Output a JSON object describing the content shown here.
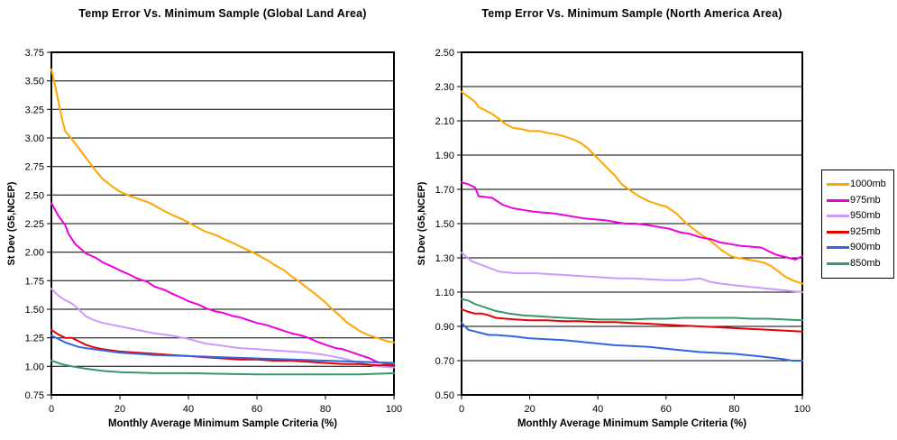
{
  "page": {
    "background": "#ffffff"
  },
  "legend": {
    "position": "right",
    "entries": [
      {
        "label": "1000mb",
        "color": "#FFA500"
      },
      {
        "label": "975mb",
        "color": "#EE00DD"
      },
      {
        "label": "950mb",
        "color": "#CC99FF"
      },
      {
        "label": "925mb",
        "color": "#E60000"
      },
      {
        "label": "900mb",
        "color": "#3366DD"
      },
      {
        "label": "850mb",
        "color": "#339966"
      }
    ]
  },
  "chart_data": [
    {
      "type": "line",
      "title": "Temp Error Vs. Minimum Sample (Global Land Area)",
      "xlabel": "Monthly Average Minimum Sample Criteria (%)",
      "ylabel": "St Dev (G5,NCEP)",
      "xlim": [
        0,
        100
      ],
      "xticks": [
        0,
        20,
        40,
        60,
        80,
        100
      ],
      "ylim": [
        0.75,
        3.75
      ],
      "ytick_step": 0.25,
      "grid": true,
      "series": [
        {
          "name": "1000mb",
          "color": "#FFA500",
          "x": [
            0,
            1,
            3,
            4,
            6,
            8,
            10,
            13,
            15,
            18,
            20,
            23,
            25,
            28,
            30,
            33,
            35,
            38,
            40,
            43,
            45,
            48,
            50,
            53,
            55,
            58,
            60,
            63,
            65,
            68,
            70,
            72,
            75,
            78,
            80,
            82,
            84,
            86,
            88,
            90,
            92,
            94,
            96,
            98,
            100
          ],
          "y": [
            3.6,
            3.47,
            3.18,
            3.06,
            2.99,
            2.91,
            2.83,
            2.71,
            2.64,
            2.57,
            2.53,
            2.49,
            2.47,
            2.44,
            2.41,
            2.36,
            2.33,
            2.29,
            2.26,
            2.21,
            2.18,
            2.15,
            2.12,
            2.08,
            2.05,
            2.01,
            1.98,
            1.93,
            1.89,
            1.84,
            1.79,
            1.75,
            1.68,
            1.61,
            1.56,
            1.5,
            1.45,
            1.39,
            1.35,
            1.31,
            1.28,
            1.26,
            1.24,
            1.22,
            1.21
          ]
        },
        {
          "name": "975mb",
          "color": "#EE00DD",
          "x": [
            0,
            2,
            4,
            5,
            7,
            10,
            13,
            15,
            18,
            20,
            23,
            25,
            28,
            30,
            33,
            35,
            38,
            40,
            43,
            45,
            48,
            50,
            53,
            55,
            58,
            60,
            63,
            65,
            68,
            70,
            73,
            75,
            78,
            80,
            83,
            85,
            88,
            90,
            93,
            95,
            98,
            100
          ],
          "y": [
            2.43,
            2.32,
            2.24,
            2.16,
            2.07,
            1.99,
            1.95,
            1.91,
            1.87,
            1.84,
            1.8,
            1.77,
            1.74,
            1.7,
            1.67,
            1.64,
            1.6,
            1.57,
            1.54,
            1.51,
            1.48,
            1.47,
            1.44,
            1.43,
            1.4,
            1.38,
            1.36,
            1.34,
            1.31,
            1.29,
            1.27,
            1.25,
            1.21,
            1.19,
            1.16,
            1.15,
            1.12,
            1.1,
            1.07,
            1.04,
            1.02,
            1.02
          ]
        },
        {
          "name": "950mb",
          "color": "#CC99FF",
          "x": [
            0,
            2,
            4,
            6,
            8,
            10,
            12,
            15,
            20,
            25,
            30,
            35,
            40,
            45,
            50,
            55,
            60,
            65,
            70,
            75,
            80,
            85,
            90,
            95,
            100
          ],
          "y": [
            1.68,
            1.62,
            1.58,
            1.55,
            1.5,
            1.44,
            1.41,
            1.38,
            1.35,
            1.32,
            1.29,
            1.27,
            1.24,
            1.2,
            1.18,
            1.16,
            1.15,
            1.14,
            1.13,
            1.12,
            1.1,
            1.07,
            1.03,
            1.0,
            0.99
          ]
        },
        {
          "name": "925mb",
          "color": "#E60000",
          "x": [
            0,
            2,
            4,
            6,
            8,
            10,
            12,
            15,
            20,
            25,
            30,
            35,
            40,
            45,
            50,
            55,
            60,
            65,
            70,
            75,
            80,
            85,
            90,
            95,
            100
          ],
          "y": [
            1.32,
            1.28,
            1.25,
            1.25,
            1.22,
            1.19,
            1.17,
            1.15,
            1.13,
            1.12,
            1.11,
            1.1,
            1.09,
            1.08,
            1.07,
            1.06,
            1.06,
            1.05,
            1.05,
            1.04,
            1.03,
            1.02,
            1.02,
            1.01,
            1.01
          ]
        },
        {
          "name": "900mb",
          "color": "#3366DD",
          "x": [
            0,
            2,
            4,
            6,
            8,
            10,
            15,
            20,
            25,
            30,
            40,
            50,
            60,
            70,
            80,
            90,
            100
          ],
          "y": [
            1.27,
            1.24,
            1.21,
            1.19,
            1.17,
            1.16,
            1.14,
            1.12,
            1.11,
            1.1,
            1.09,
            1.08,
            1.07,
            1.06,
            1.05,
            1.04,
            1.03
          ]
        },
        {
          "name": "850mb",
          "color": "#339966",
          "x": [
            0,
            3,
            6,
            10,
            15,
            20,
            25,
            30,
            40,
            50,
            60,
            70,
            80,
            90,
            100
          ],
          "y": [
            1.05,
            1.02,
            1.0,
            0.98,
            0.96,
            0.95,
            0.945,
            0.94,
            0.94,
            0.935,
            0.93,
            0.93,
            0.93,
            0.93,
            0.94
          ]
        }
      ]
    },
    {
      "type": "line",
      "title": "Temp Error Vs. Minimum Sample (North America Area)",
      "xlabel": "Monthly Average Minimum Sample Criteria (%)",
      "ylabel": "St Dev (G5,NCEP)",
      "xlim": [
        0,
        100
      ],
      "xticks": [
        0,
        20,
        40,
        60,
        80,
        100
      ],
      "ylim": [
        0.5,
        2.5
      ],
      "ytick_step": 0.2,
      "grid": true,
      "series": [
        {
          "name": "1000mb",
          "color": "#FFA500",
          "x": [
            0,
            2,
            4,
            5,
            7,
            9,
            11,
            13,
            15,
            18,
            20,
            23,
            25,
            28,
            30,
            33,
            35,
            37,
            39,
            41,
            43,
            45,
            47,
            49,
            52,
            55,
            58,
            60,
            63,
            66,
            68,
            70,
            73,
            76,
            79,
            81,
            84,
            87,
            89,
            91,
            93,
            95,
            97,
            100
          ],
          "y": [
            2.27,
            2.24,
            2.21,
            2.18,
            2.16,
            2.14,
            2.11,
            2.08,
            2.06,
            2.05,
            2.04,
            2.04,
            2.03,
            2.02,
            2.01,
            1.99,
            1.97,
            1.94,
            1.9,
            1.86,
            1.82,
            1.78,
            1.73,
            1.7,
            1.66,
            1.63,
            1.61,
            1.6,
            1.56,
            1.5,
            1.47,
            1.44,
            1.4,
            1.35,
            1.31,
            1.3,
            1.29,
            1.28,
            1.27,
            1.25,
            1.22,
            1.19,
            1.17,
            1.15
          ]
        },
        {
          "name": "975mb",
          "color": "#EE00DD",
          "x": [
            0,
            2,
            4,
            5,
            7,
            9,
            12,
            15,
            18,
            21,
            24,
            27,
            30,
            33,
            36,
            39,
            42,
            45,
            48,
            51,
            55,
            58,
            61,
            64,
            67,
            70,
            73,
            76,
            79,
            82,
            85,
            88,
            90,
            92,
            94,
            96,
            98,
            100
          ],
          "y": [
            1.74,
            1.73,
            1.71,
            1.66,
            1.655,
            1.65,
            1.61,
            1.59,
            1.58,
            1.57,
            1.565,
            1.56,
            1.55,
            1.54,
            1.53,
            1.525,
            1.52,
            1.51,
            1.5,
            1.5,
            1.49,
            1.48,
            1.47,
            1.45,
            1.44,
            1.42,
            1.41,
            1.39,
            1.38,
            1.37,
            1.365,
            1.36,
            1.34,
            1.32,
            1.31,
            1.3,
            1.29,
            1.31
          ]
        },
        {
          "name": "950mb",
          "color": "#CC99FF",
          "x": [
            0,
            3,
            7,
            11,
            16,
            22,
            30,
            38,
            46,
            50,
            55,
            60,
            65,
            70,
            73,
            76,
            80,
            85,
            90,
            95,
            100
          ],
          "y": [
            1.33,
            1.28,
            1.25,
            1.22,
            1.21,
            1.21,
            1.2,
            1.19,
            1.18,
            1.18,
            1.175,
            1.17,
            1.17,
            1.18,
            1.16,
            1.15,
            1.14,
            1.13,
            1.12,
            1.11,
            1.1
          ]
        },
        {
          "name": "925mb",
          "color": "#E60000",
          "x": [
            0,
            2,
            4,
            6,
            8,
            10,
            13,
            16,
            20,
            25,
            30,
            35,
            40,
            45,
            50,
            55,
            60,
            65,
            70,
            75,
            80,
            85,
            90,
            95,
            100
          ],
          "y": [
            1.0,
            0.985,
            0.975,
            0.975,
            0.965,
            0.95,
            0.945,
            0.94,
            0.935,
            0.935,
            0.93,
            0.93,
            0.925,
            0.925,
            0.92,
            0.915,
            0.91,
            0.905,
            0.9,
            0.895,
            0.89,
            0.885,
            0.88,
            0.875,
            0.87
          ]
        },
        {
          "name": "900mb",
          "color": "#3366DD",
          "x": [
            0,
            2,
            4,
            6,
            8,
            10,
            13,
            16,
            20,
            25,
            30,
            35,
            40,
            45,
            50,
            55,
            60,
            65,
            70,
            75,
            80,
            85,
            90,
            94,
            97,
            100
          ],
          "y": [
            0.92,
            0.88,
            0.87,
            0.86,
            0.85,
            0.85,
            0.845,
            0.84,
            0.83,
            0.825,
            0.82,
            0.81,
            0.8,
            0.79,
            0.785,
            0.78,
            0.77,
            0.76,
            0.75,
            0.745,
            0.74,
            0.73,
            0.72,
            0.71,
            0.7,
            0.7
          ]
        },
        {
          "name": "850mb",
          "color": "#339966",
          "x": [
            0,
            2,
            4,
            7,
            10,
            14,
            18,
            22,
            26,
            30,
            35,
            40,
            45,
            50,
            55,
            60,
            65,
            70,
            75,
            80,
            85,
            90,
            95,
            100
          ],
          "y": [
            1.06,
            1.05,
            1.03,
            1.01,
            0.99,
            0.975,
            0.965,
            0.96,
            0.955,
            0.95,
            0.945,
            0.94,
            0.94,
            0.94,
            0.945,
            0.945,
            0.95,
            0.95,
            0.95,
            0.95,
            0.945,
            0.945,
            0.94,
            0.935
          ]
        }
      ]
    }
  ]
}
